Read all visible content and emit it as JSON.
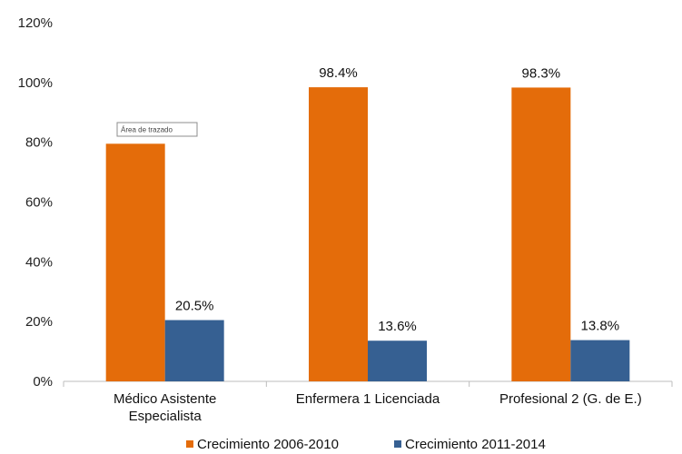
{
  "chart_data": {
    "type": "bar",
    "categories": [
      [
        "Médico Asistente",
        "Especialista"
      ],
      [
        "Enfermera 1 Licenciada"
      ],
      [
        "Profesional 2 (G. de E.)"
      ]
    ],
    "series": [
      {
        "name": "Crecimiento 2006-2010",
        "color": "#E46C0A",
        "values": [
          79.5,
          98.4,
          98.3
        ],
        "data_labels": [
          "",
          "98.4%",
          "98.3%"
        ]
      },
      {
        "name": "Crecimiento 2011-2014",
        "color": "#366092",
        "values": [
          20.5,
          13.6,
          13.8
        ],
        "data_labels": [
          "20.5%",
          "13.6%",
          "13.8%"
        ]
      }
    ],
    "y_ticks": [
      "0%",
      "20%",
      "40%",
      "60%",
      "80%",
      "100%",
      "120%"
    ],
    "ylim": [
      0,
      120
    ],
    "grid": false,
    "legend_position": "bottom",
    "annotation": "Área de trazado"
  }
}
